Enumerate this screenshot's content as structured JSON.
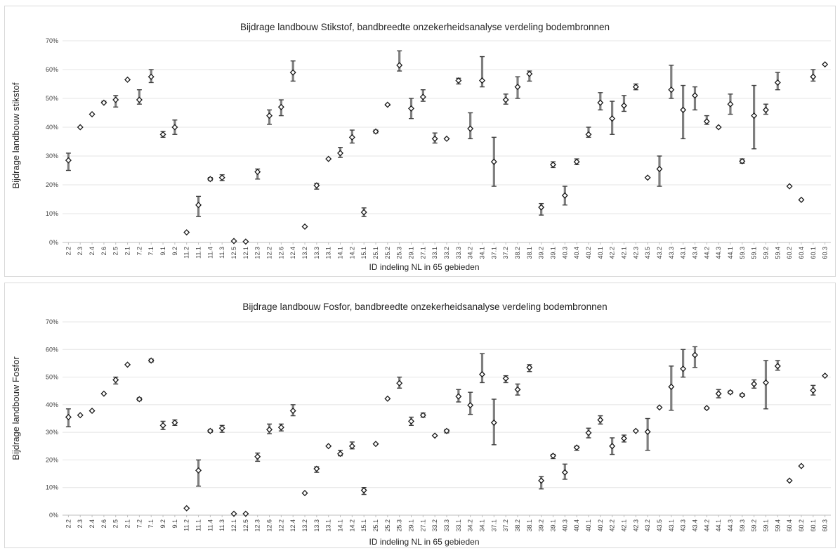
{
  "chart_data": [
    {
      "type": "scatter",
      "title": "Bijdrage landbouw Stikstof, bandbreedte onzekerheidsanalyse verdeling bodembronnen",
      "xlabel": "ID indeling NL in 65 gebieden",
      "ylabel": "Bijdrage landbouw stikstof",
      "ylim": [
        0,
        0.7
      ],
      "yticks": [
        "0%",
        "10%",
        "20%",
        "30%",
        "40%",
        "50%",
        "60%",
        "70%"
      ],
      "grid": true,
      "categories": [
        "2.2",
        "2.3",
        "2.4",
        "2.6",
        "2.5",
        "2.1",
        "7.2",
        "7.1",
        "9.1",
        "9.2",
        "11.2",
        "11.1",
        "11.4",
        "11.3",
        "12.5",
        "12.1",
        "12.3",
        "12.2",
        "12.6",
        "12.4",
        "13.2",
        "13.3",
        "13.1",
        "14.1",
        "14.2",
        "15.1",
        "25.1",
        "25.2",
        "25.3",
        "29.1",
        "27.1",
        "33.1",
        "33.2",
        "33.3",
        "34.2",
        "34.1",
        "37.1",
        "37.2",
        "38.2",
        "38.1",
        "39.2",
        "39.1",
        "40.3",
        "40.4",
        "40.2",
        "40.1",
        "42.2",
        "42.1",
        "42.3",
        "43.5",
        "43.2",
        "43.3",
        "43.1",
        "43.4",
        "44.2",
        "44.3",
        "44.1",
        "59.3",
        "59.1",
        "59.2",
        "59.4",
        "60.2",
        "60.4",
        "60.1",
        "60.3"
      ],
      "series": [
        {
          "values": [
            0.285,
            0.4,
            0.445,
            0.485,
            0.495,
            0.565,
            0.495,
            0.575,
            0.375,
            0.4,
            0.035,
            0.13,
            0.22,
            0.225,
            0.005,
            0.003,
            0.245,
            0.44,
            0.47,
            0.59,
            0.055,
            0.198,
            0.29,
            0.31,
            0.365,
            0.105,
            0.385,
            0.478,
            0.615,
            0.465,
            0.505,
            0.36,
            0.36,
            0.562,
            0.395,
            0.562,
            0.28,
            0.495,
            0.54,
            0.585,
            0.122,
            0.27,
            0.163,
            0.28,
            0.375,
            0.485,
            0.43,
            0.475,
            0.54,
            0.225,
            0.255,
            0.53,
            0.46,
            0.51,
            0.42,
            0.4,
            0.48,
            0.282,
            0.44,
            0.46,
            0.555,
            0.195,
            0.148,
            0.575,
            0.618
          ]
        },
        {
          "values": [
            0.31,
            0.4,
            0.445,
            0.49,
            0.51,
            0.565,
            0.53,
            0.6,
            0.385,
            0.425,
            0.035,
            0.16,
            0.225,
            0.235,
            0.005,
            0.003,
            0.255,
            0.46,
            0.495,
            0.63,
            0.055,
            0.205,
            0.29,
            0.33,
            0.39,
            0.12,
            0.39,
            0.48,
            0.665,
            0.5,
            0.53,
            0.38,
            0.36,
            0.57,
            0.45,
            0.645,
            0.365,
            0.515,
            0.575,
            0.595,
            0.135,
            0.28,
            0.195,
            0.29,
            0.4,
            0.52,
            0.49,
            0.51,
            0.55,
            0.225,
            0.3,
            0.615,
            0.545,
            0.54,
            0.44,
            0.4,
            0.515,
            0.29,
            0.545,
            0.48,
            0.59,
            0.195,
            0.148,
            0.6,
            0.618
          ]
        },
        {
          "values": [
            0.25,
            0.4,
            0.445,
            0.485,
            0.47,
            0.565,
            0.48,
            0.555,
            0.365,
            0.375,
            0.035,
            0.09,
            0.215,
            0.215,
            0.005,
            0.003,
            0.22,
            0.41,
            0.44,
            0.56,
            0.055,
            0.185,
            0.29,
            0.295,
            0.345,
            0.09,
            0.38,
            0.475,
            0.595,
            0.43,
            0.49,
            0.345,
            0.36,
            0.55,
            0.36,
            0.54,
            0.195,
            0.48,
            0.5,
            0.56,
            0.095,
            0.26,
            0.13,
            0.27,
            0.365,
            0.46,
            0.375,
            0.455,
            0.53,
            0.225,
            0.195,
            0.5,
            0.36,
            0.46,
            0.41,
            0.4,
            0.445,
            0.275,
            0.325,
            0.445,
            0.53,
            0.195,
            0.148,
            0.56,
            0.618
          ]
        }
      ]
    },
    {
      "type": "scatter",
      "title": "Bijdrage landbouw Fosfor, bandbreedte onzekerheidsanalyse verdeling bodembronnen",
      "xlabel": "ID indeling NL in 65 gebieden",
      "ylabel": "Bijdrage landbouw Fosfor",
      "ylim": [
        0,
        0.7
      ],
      "yticks": [
        "0%",
        "10%",
        "20%",
        "30%",
        "40%",
        "50%",
        "60%",
        "70%"
      ],
      "grid": true,
      "categories": [
        "2.2",
        "2.3",
        "2.4",
        "2.6",
        "2.5",
        "2.1",
        "7.2",
        "7.1",
        "9.2",
        "9.1",
        "11.2",
        "11.1",
        "11.4",
        "11.3",
        "12.1",
        "12.5",
        "12.3",
        "12.6",
        "12.2",
        "12.4",
        "13.2",
        "13.3",
        "13.1",
        "14.1",
        "14.2",
        "15.1",
        "25.1",
        "25.2",
        "25.3",
        "29.1",
        "27.1",
        "33.2",
        "33.3",
        "33.1",
        "34.2",
        "34.1",
        "37.1",
        "37.2",
        "38.2",
        "38.1",
        "39.2",
        "39.1",
        "40.3",
        "40.4",
        "40.1",
        "40.2",
        "42.2",
        "42.1",
        "42.3",
        "43.2",
        "43.5",
        "43.1",
        "43.3",
        "43.4",
        "44.2",
        "44.1",
        "44.3",
        "59.3",
        "59.2",
        "59.1",
        "59.4",
        "60.4",
        "60.2",
        "60.1",
        "60.3"
      ],
      "series": [
        {
          "values": [
            0.355,
            0.362,
            0.378,
            0.44,
            0.49,
            0.545,
            0.42,
            0.56,
            0.325,
            0.335,
            0.025,
            0.162,
            0.305,
            0.315,
            0.005,
            0.005,
            0.212,
            0.31,
            0.318,
            0.378,
            0.08,
            0.168,
            0.25,
            0.222,
            0.25,
            0.09,
            0.258,
            0.422,
            0.478,
            0.34,
            0.362,
            0.288,
            0.305,
            0.43,
            0.398,
            0.51,
            0.335,
            0.495,
            0.455,
            0.535,
            0.125,
            0.215,
            0.155,
            0.245,
            0.298,
            0.345,
            0.25,
            0.278,
            0.305,
            0.302,
            0.39,
            0.465,
            0.53,
            0.58,
            0.388,
            0.44,
            0.445,
            0.435,
            0.475,
            0.48,
            0.54,
            0.125,
            0.178,
            0.452,
            0.505
          ]
        },
        {
          "values": [
            0.385,
            0.362,
            0.378,
            0.44,
            0.5,
            0.545,
            0.425,
            0.565,
            0.34,
            0.345,
            0.025,
            0.2,
            0.31,
            0.325,
            0.005,
            0.005,
            0.225,
            0.33,
            0.33,
            0.4,
            0.08,
            0.175,
            0.25,
            0.235,
            0.265,
            0.1,
            0.258,
            0.422,
            0.5,
            0.355,
            0.37,
            0.288,
            0.31,
            0.455,
            0.445,
            0.585,
            0.42,
            0.505,
            0.475,
            0.545,
            0.14,
            0.22,
            0.185,
            0.25,
            0.315,
            0.36,
            0.28,
            0.29,
            0.305,
            0.35,
            0.39,
            0.54,
            0.6,
            0.61,
            0.39,
            0.455,
            0.45,
            0.44,
            0.49,
            0.56,
            0.56,
            0.125,
            0.178,
            0.47,
            0.505
          ]
        },
        {
          "values": [
            0.32,
            0.362,
            0.378,
            0.44,
            0.475,
            0.545,
            0.415,
            0.555,
            0.31,
            0.325,
            0.025,
            0.105,
            0.3,
            0.3,
            0.005,
            0.005,
            0.195,
            0.295,
            0.305,
            0.36,
            0.08,
            0.155,
            0.25,
            0.215,
            0.24,
            0.075,
            0.258,
            0.422,
            0.46,
            0.325,
            0.355,
            0.288,
            0.298,
            0.41,
            0.365,
            0.48,
            0.255,
            0.48,
            0.435,
            0.52,
            0.095,
            0.205,
            0.13,
            0.235,
            0.28,
            0.33,
            0.22,
            0.265,
            0.305,
            0.235,
            0.39,
            0.38,
            0.5,
            0.535,
            0.385,
            0.425,
            0.44,
            0.43,
            0.46,
            0.385,
            0.525,
            0.125,
            0.178,
            0.435,
            0.505
          ]
        }
      ]
    }
  ]
}
